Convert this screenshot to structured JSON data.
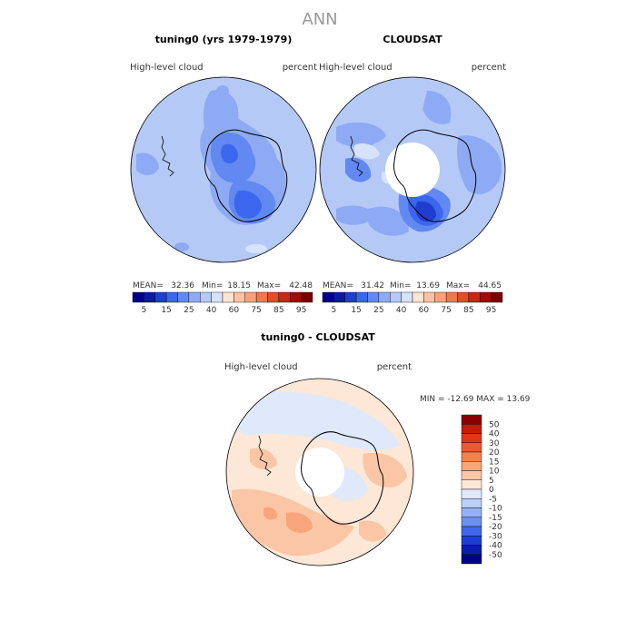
{
  "page_title": "ANN",
  "panels": [
    {
      "title": "tuning0 (yrs 1979-1979)",
      "variable": "High-level cloud",
      "units": "percent",
      "stats": {
        "mean_label": "MEAN=",
        "mean": "32.36",
        "min_label": "Min=",
        "min": "18.15",
        "max_label": "Max=",
        "max": "42.48"
      }
    },
    {
      "title": "CLOUDSAT",
      "variable": "High-level cloud",
      "units": "percent",
      "stats": {
        "mean_label": "MEAN=",
        "mean": "31.42",
        "min_label": "Min=",
        "min": "13.69",
        "max_label": "Max=",
        "max": "44.65"
      }
    }
  ],
  "abs_colorbar": {
    "labels": [
      "5",
      "15",
      "25",
      "40",
      "60",
      "75",
      "85",
      "95"
    ],
    "colors": [
      "#00008b",
      "#0a1aa8",
      "#1f3ed1",
      "#3b66ee",
      "#6189f1",
      "#8eaaf4",
      "#b5c9f7",
      "#d6e3fa",
      "#fce4d2",
      "#fbc3a4",
      "#f8a17b",
      "#f27751",
      "#e64a2c",
      "#c92616",
      "#a10d0a",
      "#7a0000"
    ]
  },
  "diff_panel": {
    "title": "tuning0 - CLOUDSAT",
    "variable": "High-level cloud",
    "units": "percent",
    "minmax": "MIN =  -12.69  MAX =   13.69"
  },
  "diff_colorbar": {
    "labels": [
      "50",
      "40",
      "30",
      "20",
      "15",
      "10",
      "5",
      "0",
      "-5",
      "-10",
      "-15",
      "-20",
      "-30",
      "-40",
      "-50"
    ],
    "colors": [
      "#8b0000",
      "#c21c0c",
      "#e0361a",
      "#f0582d",
      "#f7804f",
      "#f9a57c",
      "#fbc6a6",
      "#fde7d6",
      "#dfe9fb",
      "#bcd1f8",
      "#94b2f4",
      "#6c8ff0",
      "#3f66ea",
      "#1d3ed4",
      "#0a1ea8",
      "#00008b"
    ]
  },
  "colors": {
    "map_base": "#b5c9f7",
    "map_mid": "#8eaaf4",
    "map_dark": "#6189f1",
    "map_darker": "#3b66ee",
    "map_darkest": "#1f3ed1",
    "land_pole": "#ffffff",
    "diff_base": "#fde7d6",
    "diff_pos": "#fbc6a6",
    "diff_neg": "#dfe9fb"
  }
}
